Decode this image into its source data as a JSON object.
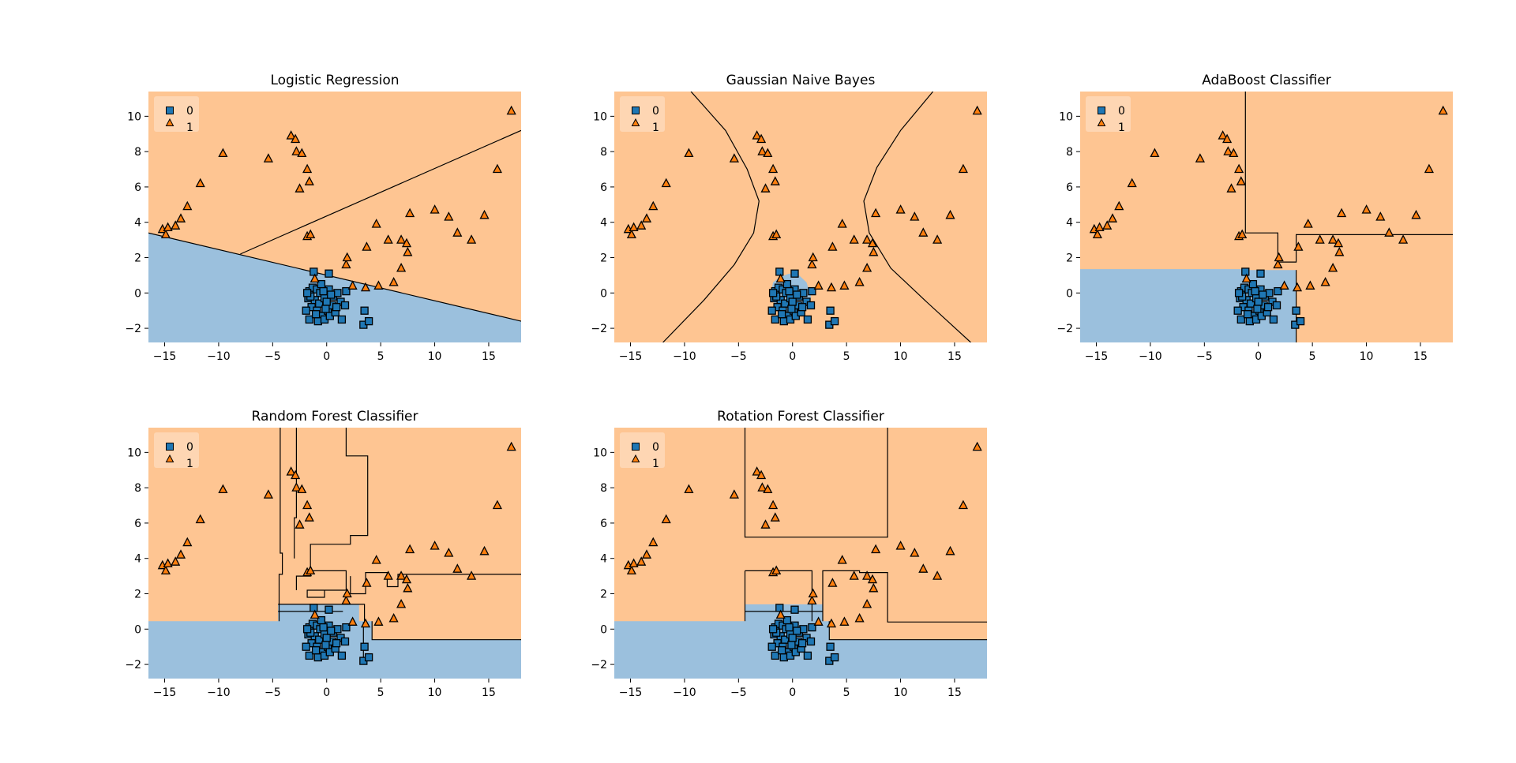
{
  "figure": {
    "panels_shown": 5,
    "grid": "2x3"
  },
  "chart_data": [
    {
      "type": "scatter",
      "title": "Logistic Regression",
      "xlim": [
        -16.5,
        18.0
      ],
      "ylim": [
        -2.8,
        11.4
      ],
      "xticks": [
        -15,
        -10,
        -5,
        0,
        5,
        10,
        15
      ],
      "yticks": [
        -2,
        0,
        2,
        4,
        6,
        8,
        10
      ],
      "xtick_labels": [
        "−15",
        "−10",
        "−5",
        "0",
        "5",
        "10",
        "15"
      ],
      "ytick_labels": [
        "−2",
        "0",
        "2",
        "4",
        "6",
        "8",
        "10"
      ],
      "xlabel": "",
      "ylabel": "",
      "legend": {
        "position": "top-left",
        "entries": [
          "0",
          "1"
        ]
      },
      "background_class": "1",
      "regions_class0": [
        [
          [
            -16.5,
            3.4
          ],
          [
            18.0,
            -1.6
          ],
          [
            18.0,
            -2.8
          ],
          [
            -16.5,
            -2.8
          ]
        ]
      ],
      "boundaries": [
        [
          [
            -16.5,
            3.4
          ],
          [
            18.0,
            -1.6
          ]
        ],
        [
          [
            -8.0,
            2.2
          ],
          [
            18.0,
            9.2
          ]
        ]
      ]
    },
    {
      "type": "scatter",
      "title": "Gaussian Naive Bayes",
      "xlim": [
        -16.5,
        18.0
      ],
      "ylim": [
        -2.8,
        11.4
      ],
      "xticks": [
        -15,
        -10,
        -5,
        0,
        5,
        10,
        15
      ],
      "yticks": [
        -2,
        0,
        2,
        4,
        6,
        8,
        10
      ],
      "xtick_labels": [
        "−15",
        "−10",
        "−5",
        "0",
        "5",
        "10",
        "15"
      ],
      "ytick_labels": [
        "−2",
        "0",
        "2",
        "4",
        "6",
        "8",
        "10"
      ],
      "xlabel": "",
      "ylabel": "",
      "legend": {
        "position": "top-left",
        "entries": [
          "0",
          "1"
        ]
      },
      "background_class": "1",
      "regions_class0": [
        [
          [
            -1.8,
            0.6
          ],
          [
            -1.2,
            0.9
          ],
          [
            -0.3,
            1.1
          ],
          [
            0.6,
            1.0
          ],
          [
            1.3,
            0.6
          ],
          [
            1.7,
            -0.2
          ],
          [
            1.5,
            -0.9
          ],
          [
            0.5,
            -1.2
          ],
          [
            -0.8,
            -1.1
          ],
          [
            -1.7,
            -0.6
          ],
          [
            -2.0,
            0.0
          ]
        ]
      ],
      "boundaries": [
        [
          [
            -9.4,
            11.4
          ],
          [
            -6.2,
            9.2
          ],
          [
            -4.2,
            7.0
          ],
          [
            -3.1,
            5.2
          ],
          [
            -3.6,
            3.4
          ],
          [
            -5.4,
            1.6
          ],
          [
            -8.2,
            -0.4
          ],
          [
            -12.0,
            -2.8
          ]
        ],
        [
          [
            13.0,
            11.4
          ],
          [
            10.0,
            9.2
          ],
          [
            7.8,
            7.1
          ],
          [
            6.6,
            5.2
          ],
          [
            7.1,
            3.4
          ],
          [
            9.1,
            1.4
          ],
          [
            12.4,
            -0.5
          ],
          [
            16.5,
            -2.8
          ]
        ]
      ]
    },
    {
      "type": "scatter",
      "title": "AdaBoost Classifier",
      "xlim": [
        -16.5,
        18.0
      ],
      "ylim": [
        -2.8,
        11.4
      ],
      "xticks": [
        -15,
        -10,
        -5,
        0,
        5,
        10,
        15
      ],
      "yticks": [
        -2,
        0,
        2,
        4,
        6,
        8,
        10
      ],
      "xtick_labels": [
        "−15",
        "−10",
        "−5",
        "0",
        "5",
        "10",
        "15"
      ],
      "ytick_labels": [
        "−2",
        "0",
        "2",
        "4",
        "6",
        "8",
        "10"
      ],
      "xlabel": "",
      "ylabel": "",
      "legend": {
        "position": "top-left",
        "entries": [
          "0",
          "1"
        ]
      },
      "background_class": "1",
      "regions_class0": [
        [
          [
            -16.5,
            1.35
          ],
          [
            -1.4,
            1.35
          ],
          [
            -1.4,
            1.3
          ],
          [
            3.5,
            1.3
          ],
          [
            3.5,
            -2.8
          ],
          [
            -16.5,
            -2.8
          ]
        ]
      ],
      "boundaries": [
        [
          [
            -1.2,
            11.4
          ],
          [
            -1.2,
            3.4
          ],
          [
            1.8,
            3.4
          ],
          [
            1.8,
            1.75
          ],
          [
            3.5,
            1.75
          ],
          [
            3.5,
            3.3
          ],
          [
            18.0,
            3.3
          ]
        ],
        [
          [
            3.5,
            1.3
          ],
          [
            3.5,
            -2.8
          ]
        ]
      ]
    },
    {
      "type": "scatter",
      "title": "Random Forest Classifier",
      "xlim": [
        -16.5,
        18.0
      ],
      "ylim": [
        -2.8,
        11.4
      ],
      "xticks": [
        -15,
        -10,
        -5,
        0,
        5,
        10,
        15
      ],
      "yticks": [
        -2,
        0,
        2,
        4,
        6,
        8,
        10
      ],
      "xtick_labels": [
        "−15",
        "−10",
        "−5",
        "0",
        "5",
        "10",
        "15"
      ],
      "ytick_labels": [
        "−2",
        "0",
        "2",
        "4",
        "6",
        "8",
        "10"
      ],
      "xlabel": "",
      "ylabel": "",
      "legend": {
        "position": "top-left",
        "entries": [
          "0",
          "1"
        ]
      },
      "background_class": "1",
      "regions_class0": [
        [
          [
            -16.5,
            0.45
          ],
          [
            -4.5,
            0.45
          ],
          [
            -4.5,
            1.4
          ],
          [
            3.0,
            1.4
          ],
          [
            3.0,
            0.45
          ],
          [
            4.2,
            0.45
          ],
          [
            4.2,
            -0.6
          ],
          [
            18.0,
            -0.6
          ],
          [
            18.0,
            -2.8
          ],
          [
            -16.5,
            -2.8
          ]
        ]
      ],
      "boundaries": [
        [
          [
            -4.3,
            11.4
          ],
          [
            -4.3,
            4.3
          ],
          [
            -4.1,
            4.3
          ],
          [
            -4.1,
            3.1
          ],
          [
            -4.4,
            3.1
          ],
          [
            -4.4,
            0.45
          ]
        ],
        [
          [
            -4.5,
            1.4
          ],
          [
            3.0,
            1.4
          ],
          [
            3.5,
            1.4
          ],
          [
            3.5,
            0.45
          ]
        ],
        [
          [
            -4.5,
            1.0
          ],
          [
            1.5,
            1.0
          ]
        ],
        [
          [
            -2.8,
            11.4
          ],
          [
            -2.8,
            6.3
          ],
          [
            -3.0,
            6.3
          ],
          [
            -3.0,
            4.0
          ]
        ],
        [
          [
            1.8,
            11.4
          ],
          [
            1.8,
            9.8
          ],
          [
            3.8,
            9.8
          ],
          [
            3.8,
            5.3
          ],
          [
            2.2,
            5.3
          ],
          [
            2.2,
            4.8
          ],
          [
            -1.5,
            4.8
          ],
          [
            -1.5,
            3.0
          ],
          [
            -2.8,
            3.0
          ],
          [
            -2.8,
            2.2
          ]
        ],
        [
          [
            -1.7,
            3.3
          ],
          [
            1.8,
            3.3
          ],
          [
            1.8,
            2.2
          ],
          [
            0.3,
            2.2
          ],
          [
            -1.8,
            2.2
          ],
          [
            -1.8,
            1.8
          ],
          [
            -0.2,
            1.8
          ],
          [
            -0.2,
            2.2
          ]
        ],
        [
          [
            2.2,
            3.0
          ],
          [
            2.2,
            2.0
          ],
          [
            3.6,
            2.0
          ],
          [
            3.6,
            3.2
          ],
          [
            5.6,
            3.2
          ],
          [
            5.6,
            2.4
          ],
          [
            6.6,
            2.4
          ],
          [
            6.6,
            3.1
          ],
          [
            18.0,
            3.1
          ]
        ],
        [
          [
            4.2,
            0.45
          ],
          [
            4.2,
            -0.6
          ],
          [
            18.0,
            -0.6
          ]
        ],
        [
          [
            3.4,
            0.4
          ],
          [
            3.4,
            -1.6
          ]
        ]
      ]
    },
    {
      "type": "scatter",
      "title": "Rotation Forest Classifier",
      "xlim": [
        -16.5,
        18.0
      ],
      "ylim": [
        -2.8,
        11.4
      ],
      "xticks": [
        -15,
        -10,
        -5,
        0,
        5,
        10,
        15
      ],
      "yticks": [
        -2,
        0,
        2,
        4,
        6,
        8,
        10
      ],
      "xtick_labels": [
        "−15",
        "−10",
        "−5",
        "0",
        "5",
        "10",
        "15"
      ],
      "ytick_labels": [
        "−2",
        "0",
        "2",
        "4",
        "6",
        "8",
        "10"
      ],
      "xlabel": "",
      "ylabel": "",
      "legend": {
        "position": "top-left",
        "entries": [
          "0",
          "1"
        ]
      },
      "background_class": "1",
      "regions_class0": [
        [
          [
            -16.5,
            0.45
          ],
          [
            -4.4,
            0.45
          ],
          [
            -4.4,
            1.4
          ],
          [
            2.8,
            1.4
          ],
          [
            2.8,
            0.45
          ],
          [
            3.4,
            0.45
          ],
          [
            3.4,
            -0.6
          ],
          [
            18.0,
            -0.6
          ],
          [
            18.0,
            -2.8
          ],
          [
            -16.5,
            -2.8
          ]
        ]
      ],
      "boundaries": [
        [
          [
            -4.4,
            11.4
          ],
          [
            -4.4,
            5.2
          ],
          [
            8.8,
            5.2
          ],
          [
            8.8,
            11.4
          ]
        ],
        [
          [
            -4.4,
            3.3
          ],
          [
            1.8,
            3.3
          ],
          [
            1.8,
            0.45
          ]
        ],
        [
          [
            -4.4,
            3.3
          ],
          [
            -4.4,
            0.45
          ]
        ],
        [
          [
            2.8,
            0.45
          ],
          [
            2.8,
            3.3
          ],
          [
            6.2,
            3.3
          ],
          [
            6.2,
            3.2
          ],
          [
            8.8,
            3.2
          ],
          [
            8.8,
            0.4
          ],
          [
            18.0,
            0.4
          ]
        ],
        [
          [
            3.4,
            0.45
          ],
          [
            3.4,
            -0.6
          ],
          [
            18.0,
            -0.6
          ]
        ],
        [
          [
            -4.4,
            1.0
          ],
          [
            2.8,
            1.0
          ]
        ]
      ]
    }
  ],
  "points": {
    "class0": [
      [
        -1.6,
        0.1
      ],
      [
        -1.3,
        0.3
      ],
      [
        -0.9,
        0.2
      ],
      [
        -0.6,
        0.0
      ],
      [
        -1.7,
        -0.3
      ],
      [
        -1.1,
        -0.4
      ],
      [
        -0.7,
        -0.6
      ],
      [
        -0.2,
        -0.3
      ],
      [
        0.2,
        0.2
      ],
      [
        0.6,
        -0.2
      ],
      [
        1.0,
        0.0
      ],
      [
        1.3,
        -0.5
      ],
      [
        1.7,
        -0.7
      ],
      [
        -1.4,
        -0.8
      ],
      [
        -0.9,
        -1.0
      ],
      [
        -0.4,
        -1.3
      ],
      [
        0.1,
        -1.0
      ],
      [
        0.5,
        -0.7
      ],
      [
        -1.9,
        -1.0
      ],
      [
        -1.6,
        -1.5
      ],
      [
        -0.8,
        -1.6
      ],
      [
        -0.2,
        -1.5
      ],
      [
        0.3,
        -1.3
      ],
      [
        -1.2,
        1.2
      ],
      [
        0.2,
        1.1
      ],
      [
        -0.5,
        0.5
      ],
      [
        0.0,
        -0.5
      ],
      [
        0.8,
        -1.1
      ],
      [
        1.4,
        -1.5
      ],
      [
        1.8,
        0.1
      ],
      [
        -1.0,
        -1.2
      ],
      [
        -0.3,
        0.1
      ],
      [
        3.4,
        -1.8
      ],
      [
        3.9,
        -1.6
      ],
      [
        3.5,
        -1.0
      ],
      [
        -1.5,
        -0.2
      ],
      [
        -0.1,
        -0.9
      ],
      [
        0.9,
        -0.8
      ],
      [
        0.4,
        -0.1
      ],
      [
        -1.8,
        0.0
      ]
    ],
    "class1": [
      [
        -15.2,
        3.6
      ],
      [
        -14.9,
        3.3
      ],
      [
        -14.7,
        3.7
      ],
      [
        -14.0,
        3.8
      ],
      [
        -13.5,
        4.2
      ],
      [
        -12.9,
        4.9
      ],
      [
        -11.7,
        6.2
      ],
      [
        -9.6,
        7.9
      ],
      [
        -5.4,
        7.6
      ],
      [
        -3.3,
        8.9
      ],
      [
        -2.9,
        8.7
      ],
      [
        -2.8,
        8.0
      ],
      [
        -2.3,
        7.9
      ],
      [
        -1.8,
        7.0
      ],
      [
        -1.6,
        6.3
      ],
      [
        -2.5,
        5.9
      ],
      [
        -1.8,
        3.2
      ],
      [
        -1.5,
        3.3
      ],
      [
        -1.1,
        0.8
      ],
      [
        1.8,
        1.6
      ],
      [
        1.9,
        2.0
      ],
      [
        2.4,
        0.4
      ],
      [
        3.6,
        0.3
      ],
      [
        3.7,
        2.6
      ],
      [
        4.6,
        3.9
      ],
      [
        4.8,
        0.4
      ],
      [
        5.7,
        3.0
      ],
      [
        6.2,
        0.6
      ],
      [
        6.9,
        3.0
      ],
      [
        6.9,
        1.4
      ],
      [
        7.4,
        2.8
      ],
      [
        7.5,
        2.3
      ],
      [
        7.7,
        4.5
      ],
      [
        10.0,
        4.7
      ],
      [
        11.3,
        4.3
      ],
      [
        12.1,
        3.4
      ],
      [
        13.4,
        3.0
      ],
      [
        14.6,
        4.4
      ],
      [
        15.8,
        7.0
      ],
      [
        17.1,
        10.3
      ]
    ]
  },
  "colors": {
    "class0_region": "#9bc0dd",
    "class1_region": "#fec592",
    "class0_marker": "#1f77b4",
    "class1_marker": "#ff7f0e",
    "boundary": "#000000"
  }
}
